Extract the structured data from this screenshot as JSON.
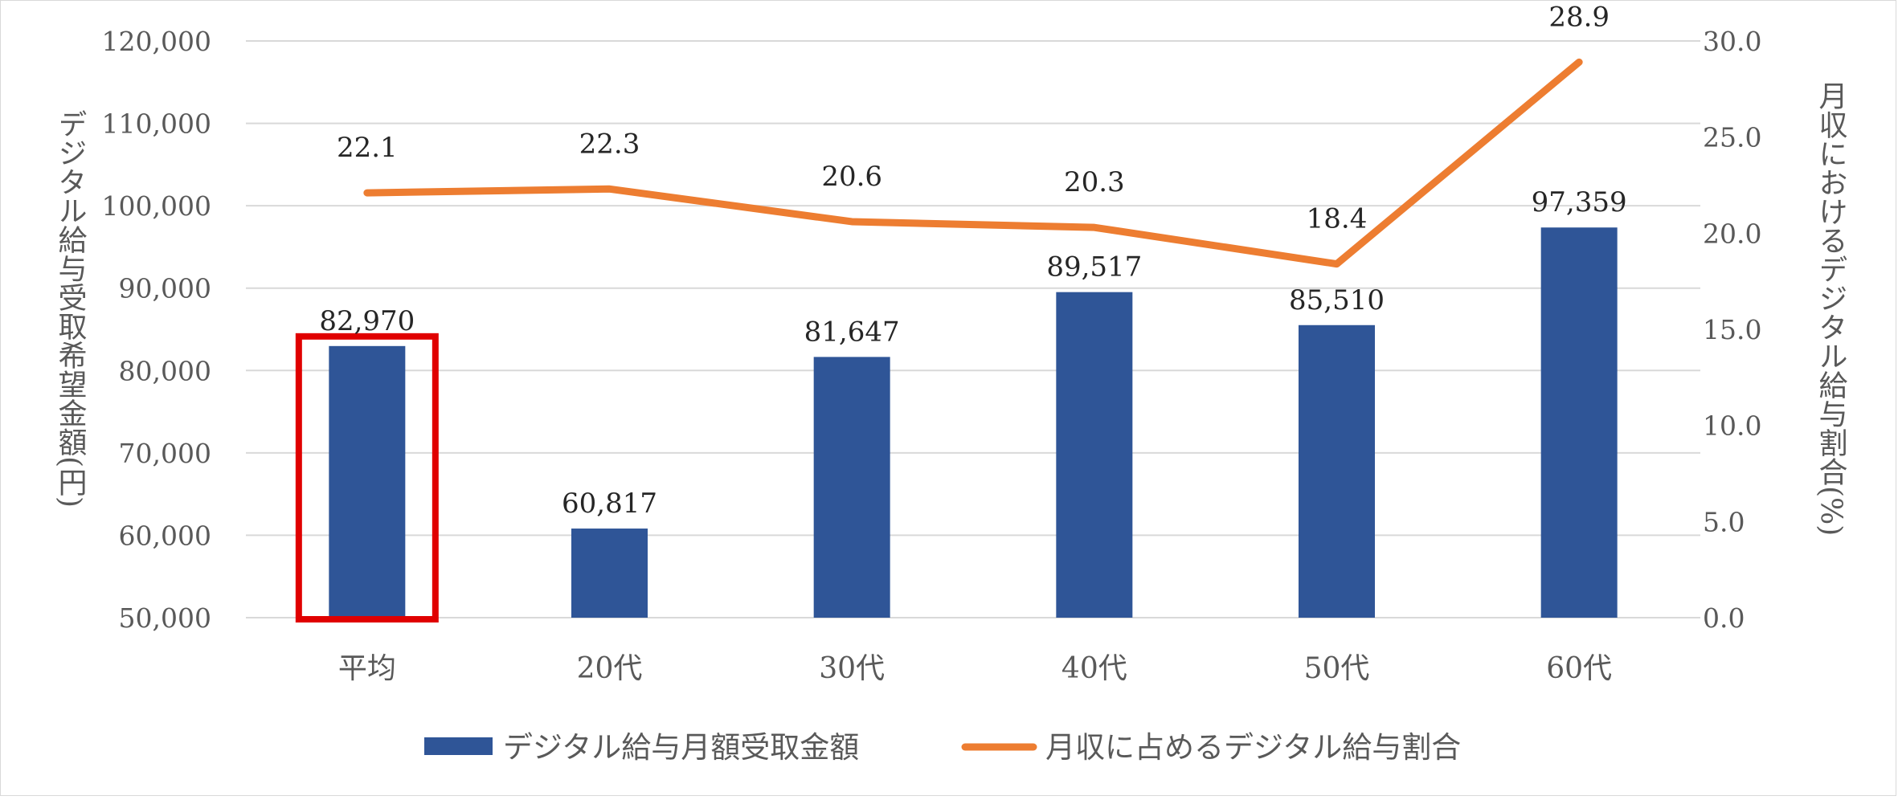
{
  "chart_data": {
    "type": "bar+line",
    "title": "",
    "categories": [
      "平均",
      "20代",
      "30代",
      "40代",
      "50代",
      "60代"
    ],
    "series": [
      {
        "name": "デジタル給与月額受取金額",
        "type": "bar",
        "axis": "left",
        "color": "#2F5597",
        "values": [
          82970,
          60817,
          81647,
          89517,
          85510,
          97359
        ],
        "labels": [
          "82,970",
          "60,817",
          "81,647",
          "89,517",
          "85,510",
          "97,359"
        ]
      },
      {
        "name": "月収に占めるデジタル給与割合",
        "type": "line",
        "axis": "right",
        "color": "#ED7D31",
        "values": [
          22.1,
          22.3,
          20.6,
          20.3,
          18.4,
          28.9
        ],
        "labels": [
          "22.1",
          "22.3",
          "20.6",
          "20.3",
          "18.4",
          "28.9"
        ]
      }
    ],
    "y_left": {
      "label": "デジタル給与受取希望金額(円)",
      "range": [
        50000,
        120000
      ],
      "ticks": [
        {
          "value": 50000,
          "label": "50,000"
        },
        {
          "value": 60000,
          "label": "60,000"
        },
        {
          "value": 70000,
          "label": "70,000"
        },
        {
          "value": 80000,
          "label": "80,000"
        },
        {
          "value": 90000,
          "label": "90,000"
        },
        {
          "value": 100000,
          "label": "100,000"
        },
        {
          "value": 110000,
          "label": "110,000"
        },
        {
          "value": 120000,
          "label": "120,000"
        }
      ]
    },
    "y_right": {
      "label": "月収におけるデジタル給与割合(%)",
      "range": [
        0,
        30
      ],
      "ticks": [
        {
          "value": 0,
          "label": "0.0"
        },
        {
          "value": 5,
          "label": "5.0"
        },
        {
          "value": 10,
          "label": "10.0"
        },
        {
          "value": 15,
          "label": "15.0"
        },
        {
          "value": 20,
          "label": "20.0"
        },
        {
          "value": 25,
          "label": "25.0"
        },
        {
          "value": 30,
          "label": "30.0"
        }
      ]
    },
    "grid": true,
    "legend": "bottom",
    "highlight": {
      "category": "平均",
      "color": "#E00000"
    },
    "gridline_color": "#D9D9D9"
  }
}
